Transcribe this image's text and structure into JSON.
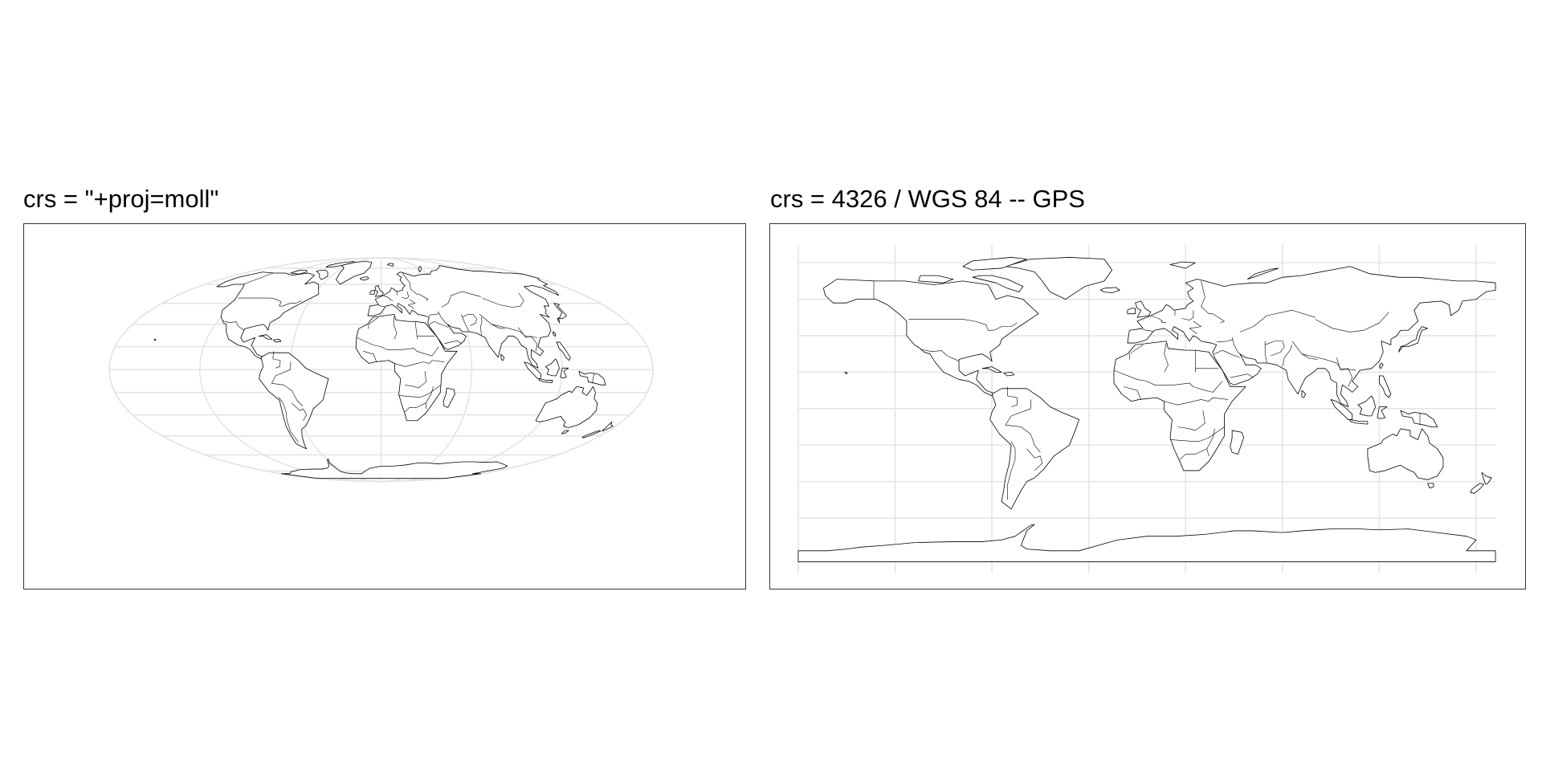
{
  "panels": [
    {
      "title": "crs = \"+proj=moll\"",
      "projection": "mollweide",
      "graticule": {
        "lon_step_deg": 60,
        "lat_step_deg": 15
      }
    },
    {
      "title": "crs = 4326 / WGS 84 -- GPS",
      "projection": "equirectangular",
      "graticule": {
        "lon_step_deg": 50,
        "lat_step_deg": 20
      }
    }
  ],
  "style": {
    "graticule_color": "#e3e3e3",
    "coastline_color": "#000000",
    "land_fill": "#ffffff",
    "panel_border_color": "#333333",
    "background": "#ffffff"
  }
}
